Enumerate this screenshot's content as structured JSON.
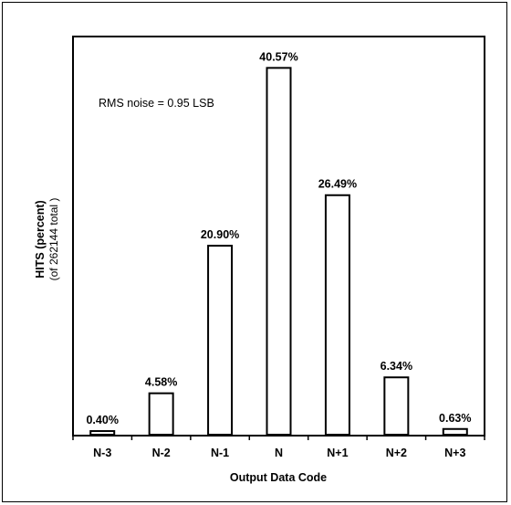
{
  "chart_data": {
    "type": "bar",
    "categories": [
      "N-3",
      "N-2",
      "N-1",
      "N",
      "N+1",
      "N+2",
      "N+3"
    ],
    "values": [
      0.4,
      4.58,
      20.9,
      40.57,
      26.49,
      6.34,
      0.63
    ],
    "data_labels": [
      "0.40%",
      "4.58%",
      "20.90%",
      "40.57%",
      "26.49%",
      "6.34%",
      "0.63%"
    ],
    "title": "",
    "xlabel": "Output Data Code",
    "ylabel": "HITS (percent)",
    "ylabel_sub": "(of 262144 total )",
    "annotation": "RMS noise = 0.95 LSB",
    "ylim": [
      0,
      45
    ],
    "grid": false,
    "bar_fill": "#ffffff",
    "bar_stroke": "#000000"
  }
}
